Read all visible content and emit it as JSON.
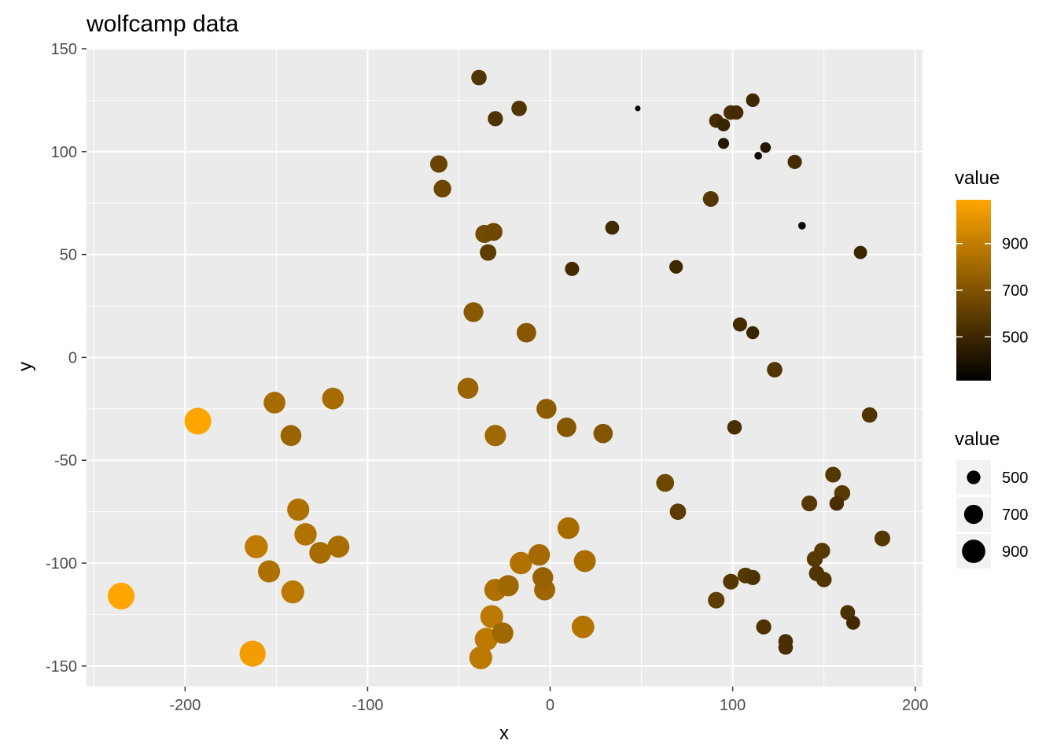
{
  "chart_data": {
    "type": "scatter",
    "title": "wolfcamp data",
    "xlabel": "x",
    "ylabel": "y",
    "xlim": [
      -254,
      204
    ],
    "ylim": [
      -160,
      150
    ],
    "x_ticks": [
      -200,
      -100,
      0,
      100,
      200
    ],
    "y_ticks": [
      -150,
      -100,
      -50,
      0,
      50,
      100,
      150
    ],
    "x_tick_labels": [
      "-200",
      "-100",
      "0",
      "100",
      "200"
    ],
    "y_tick_labels": [
      "-150",
      "-100",
      "-50",
      "0",
      "50",
      "100",
      "150"
    ],
    "grid": true,
    "color_scale": {
      "low": "#000000",
      "high": "#FFA500",
      "min": 312,
      "max": 1088
    },
    "size_scale": {
      "min_value": 312,
      "max_value": 1088
    },
    "legend_color": {
      "title": "value",
      "breaks": [
        500,
        700,
        900
      ],
      "labels": [
        "500",
        "700",
        "900"
      ],
      "position": "right"
    },
    "legend_size": {
      "title": "value",
      "breaks": [
        500,
        700,
        900
      ],
      "labels": [
        "500",
        "700",
        "900"
      ],
      "position": "right"
    },
    "points": [
      {
        "x": -39,
        "y": 136,
        "value": 560
      },
      {
        "x": -30,
        "y": 116,
        "value": 550
      },
      {
        "x": -17,
        "y": 121,
        "value": 560
      },
      {
        "x": 48,
        "y": 121,
        "value": 330
      },
      {
        "x": 91,
        "y": 115,
        "value": 520
      },
      {
        "x": 95,
        "y": 113,
        "value": 480
      },
      {
        "x": 99,
        "y": 119,
        "value": 530
      },
      {
        "x": 102,
        "y": 119,
        "value": 520
      },
      {
        "x": 111,
        "y": 125,
        "value": 500
      },
      {
        "x": 95,
        "y": 104,
        "value": 430
      },
      {
        "x": 114,
        "y": 98,
        "value": 360
      },
      {
        "x": 118,
        "y": 102,
        "value": 420
      },
      {
        "x": 134,
        "y": 95,
        "value": 520
      },
      {
        "x": -61,
        "y": 94,
        "value": 630
      },
      {
        "x": -59,
        "y": 82,
        "value": 640
      },
      {
        "x": 88,
        "y": 77,
        "value": 570
      },
      {
        "x": 138,
        "y": 64,
        "value": 360
      },
      {
        "x": 34,
        "y": 63,
        "value": 510
      },
      {
        "x": -36,
        "y": 60,
        "value": 660
      },
      {
        "x": -31,
        "y": 61,
        "value": 650
      },
      {
        "x": -34,
        "y": 51,
        "value": 600
      },
      {
        "x": 170,
        "y": 51,
        "value": 490
      },
      {
        "x": 12,
        "y": 43,
        "value": 520
      },
      {
        "x": 69,
        "y": 44,
        "value": 500
      },
      {
        "x": -42,
        "y": 22,
        "value": 730
      },
      {
        "x": -13,
        "y": 12,
        "value": 720
      },
      {
        "x": 104,
        "y": 16,
        "value": 520
      },
      {
        "x": 111,
        "y": 12,
        "value": 480
      },
      {
        "x": 123,
        "y": -6,
        "value": 560
      },
      {
        "x": -45,
        "y": -15,
        "value": 780
      },
      {
        "x": -151,
        "y": -22,
        "value": 820
      },
      {
        "x": -119,
        "y": -20,
        "value": 820
      },
      {
        "x": -193,
        "y": -31,
        "value": 1088
      },
      {
        "x": -142,
        "y": -38,
        "value": 780
      },
      {
        "x": -30,
        "y": -38,
        "value": 800
      },
      {
        "x": -2,
        "y": -25,
        "value": 740
      },
      {
        "x": 9,
        "y": -34,
        "value": 720
      },
      {
        "x": 29,
        "y": -37,
        "value": 710
      },
      {
        "x": 175,
        "y": -28,
        "value": 560
      },
      {
        "x": 101,
        "y": -34,
        "value": 530
      },
      {
        "x": 155,
        "y": -57,
        "value": 570
      },
      {
        "x": 63,
        "y": -61,
        "value": 650
      },
      {
        "x": 142,
        "y": -71,
        "value": 570
      },
      {
        "x": 157,
        "y": -71,
        "value": 530
      },
      {
        "x": 160,
        "y": -66,
        "value": 580
      },
      {
        "x": 70,
        "y": -75,
        "value": 590
      },
      {
        "x": 182,
        "y": -88,
        "value": 570
      },
      {
        "x": -138,
        "y": -74,
        "value": 840
      },
      {
        "x": -134,
        "y": -86,
        "value": 850
      },
      {
        "x": -126,
        "y": -95,
        "value": 820
      },
      {
        "x": -116,
        "y": -92,
        "value": 830
      },
      {
        "x": -161,
        "y": -92,
        "value": 890
      },
      {
        "x": 10,
        "y": -83,
        "value": 820
      },
      {
        "x": 149,
        "y": -94,
        "value": 580
      },
      {
        "x": 145,
        "y": -98,
        "value": 580
      },
      {
        "x": 146,
        "y": -105,
        "value": 560
      },
      {
        "x": 150,
        "y": -108,
        "value": 560
      },
      {
        "x": -154,
        "y": -104,
        "value": 840
      },
      {
        "x": -16,
        "y": -100,
        "value": 850
      },
      {
        "x": -6,
        "y": -96,
        "value": 810
      },
      {
        "x": -4,
        "y": -107,
        "value": 770
      },
      {
        "x": -3,
        "y": -113,
        "value": 790
      },
      {
        "x": 19,
        "y": -99,
        "value": 830
      },
      {
        "x": 99,
        "y": -109,
        "value": 570
      },
      {
        "x": 107,
        "y": -106,
        "value": 570
      },
      {
        "x": 111,
        "y": -107,
        "value": 550
      },
      {
        "x": -141,
        "y": -114,
        "value": 880
      },
      {
        "x": -30,
        "y": -113,
        "value": 840
      },
      {
        "x": -23,
        "y": -111,
        "value": 800
      },
      {
        "x": 91,
        "y": -118,
        "value": 600
      },
      {
        "x": -235,
        "y": -116,
        "value": 1088
      },
      {
        "x": 163,
        "y": -124,
        "value": 540
      },
      {
        "x": 166,
        "y": -129,
        "value": 510
      },
      {
        "x": -32,
        "y": -126,
        "value": 880
      },
      {
        "x": 18,
        "y": -131,
        "value": 860
      },
      {
        "x": 117,
        "y": -131,
        "value": 550
      },
      {
        "x": -35,
        "y": -137,
        "value": 880
      },
      {
        "x": -26,
        "y": -134,
        "value": 800
      },
      {
        "x": 129,
        "y": -138,
        "value": 530
      },
      {
        "x": 129,
        "y": -141,
        "value": 530
      },
      {
        "x": -163,
        "y": -144,
        "value": 1050
      },
      {
        "x": -38,
        "y": -146,
        "value": 880
      }
    ]
  }
}
